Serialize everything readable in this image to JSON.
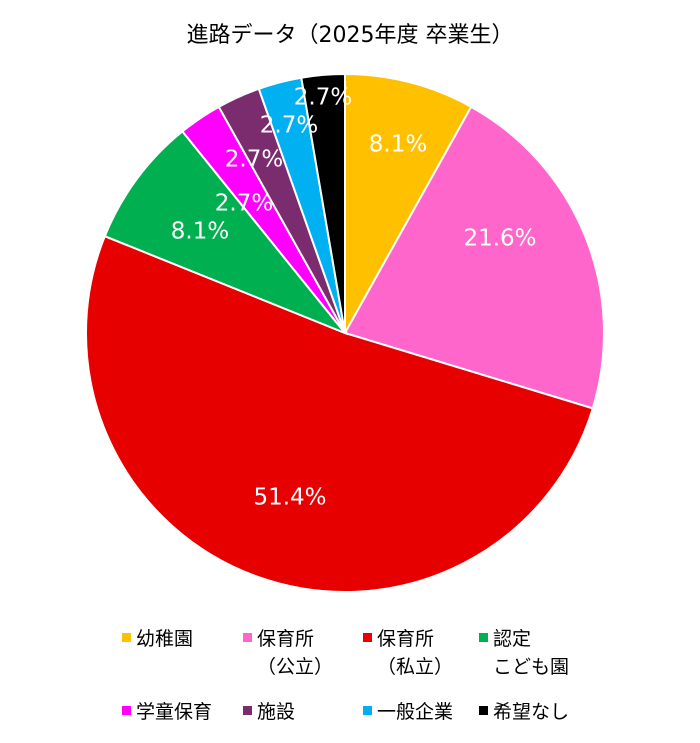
{
  "chart_data": {
    "type": "pie",
    "title": "進路データ（2025年度 卒業生）",
    "slices": [
      {
        "label": "幼稚園",
        "legend_lines": [
          "幼稚園"
        ],
        "value": 8.1,
        "display": "8.1%",
        "color": "#FFC000"
      },
      {
        "label": "保育所（公立）",
        "legend_lines": [
          "保育所",
          "（公立）"
        ],
        "value": 21.6,
        "display": "21.6%",
        "color": "#FF66CC"
      },
      {
        "label": "保育所（私立）",
        "legend_lines": [
          "保育所",
          "（私立）"
        ],
        "value": 51.4,
        "display": "51.4%",
        "color": "#E60000"
      },
      {
        "label": "認定こども園",
        "legend_lines": [
          "認定",
          "こども園"
        ],
        "value": 8.1,
        "display": "8.1%",
        "color": "#00B050"
      },
      {
        "label": "学童保育",
        "legend_lines": [
          "学童保育"
        ],
        "value": 2.7,
        "display": "2.7%",
        "color": "#FF00FF"
      },
      {
        "label": "施設",
        "legend_lines": [
          "施設"
        ],
        "value": 2.7,
        "display": "2.7%",
        "color": "#7B2C6E"
      },
      {
        "label": "一般企業",
        "legend_lines": [
          "一般企業"
        ],
        "value": 2.7,
        "display": "2.7%",
        "color": "#00B0F0"
      },
      {
        "label": "希望なし",
        "legend_lines": [
          "希望なし"
        ],
        "value": 2.7,
        "display": "2.7%",
        "color": "#000000"
      }
    ],
    "start_angle_deg": 0,
    "direction": "clockwise",
    "legend_position": "bottom"
  }
}
